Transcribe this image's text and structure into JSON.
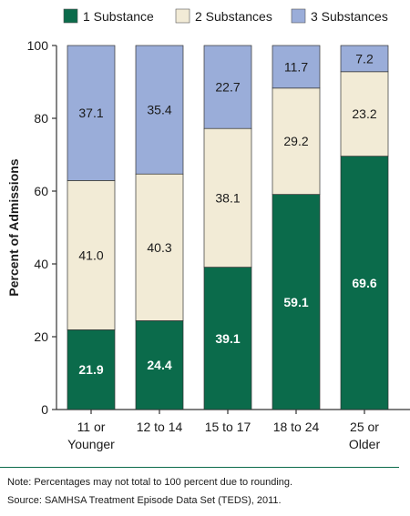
{
  "chart_data": {
    "type": "bar",
    "stacked": true,
    "categories": [
      "11 or Younger",
      "12 to 14",
      "15 to 17",
      "18 to 24",
      "25 or Older"
    ],
    "category_lines": [
      [
        "11 or",
        "Younger"
      ],
      [
        "12 to 14"
      ],
      [
        "15 to 17"
      ],
      [
        "18 to 24"
      ],
      [
        "25 or",
        "Older"
      ]
    ],
    "series": [
      {
        "name": "1 Substance",
        "color": "#0b6b4b",
        "values": [
          21.9,
          24.4,
          39.1,
          59.1,
          69.6
        ],
        "labels": [
          "21.9",
          "24.4",
          "39.1",
          "59.1",
          "69.6"
        ]
      },
      {
        "name": "2 Substances",
        "color": "#f2ebd6",
        "values": [
          41.0,
          40.3,
          38.1,
          29.2,
          23.2
        ],
        "labels": [
          "41.0",
          "40.3",
          "38.1",
          "29.2",
          "23.2"
        ]
      },
      {
        "name": "3 Substances",
        "color": "#9aadd9",
        "values": [
          37.1,
          35.4,
          22.7,
          11.7,
          7.2
        ],
        "labels": [
          "37.1",
          "35.4",
          "22.7",
          "11.7",
          "7.2"
        ]
      }
    ],
    "ylabel": "Percent of Admissions",
    "ylim": [
      0,
      100
    ],
    "yticks": [
      0,
      20,
      40,
      60,
      80,
      100
    ],
    "grid": false,
    "legend_position": "top"
  },
  "notes": {
    "note": "Note: Percentages may not total to 100 percent due to rounding.",
    "source": "Source: SAMHSA Treatment Episode Data Set (TEDS), 2011."
  }
}
